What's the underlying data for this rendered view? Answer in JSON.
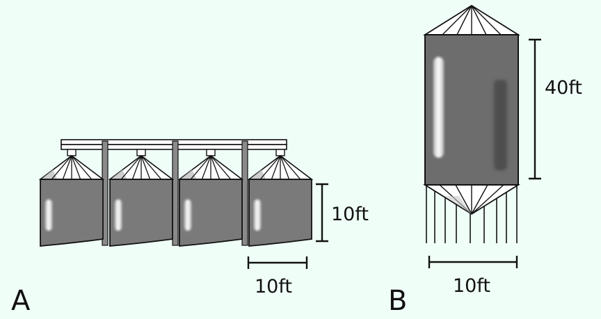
{
  "colors": {
    "background": "#effef7",
    "silo_body": "#7a7a7a",
    "silo_body_b": "#6d6d6d",
    "roof": "#ffffff",
    "outline": "#111111",
    "highlight": "#ffffff"
  },
  "figure_a": {
    "panel_label": "A",
    "silo_count": 4,
    "height_label": "10ft",
    "width_label": "10ft"
  },
  "figure_b": {
    "panel_label": "B",
    "height_label": "40ft",
    "width_label": "10ft"
  }
}
